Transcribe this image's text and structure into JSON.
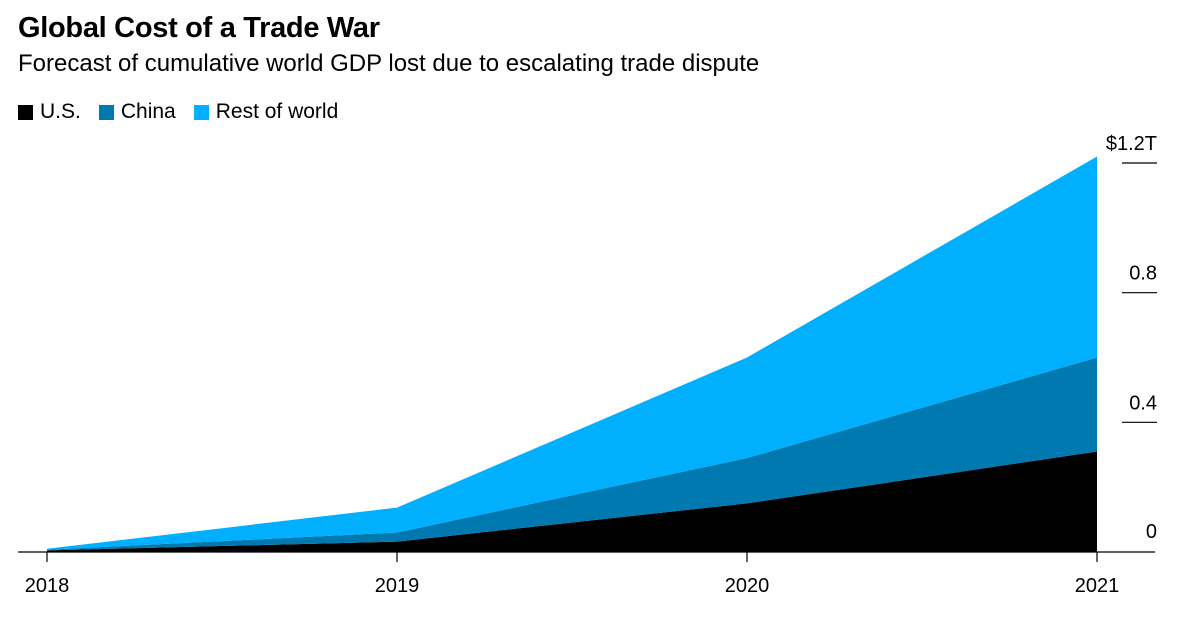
{
  "title": "Global Cost of a Trade War",
  "subtitle": "Forecast of cumulative world GDP lost due to escalating trade dispute",
  "chart_data": {
    "type": "area",
    "stacked": true,
    "x": [
      "2018",
      "2019",
      "2020",
      "2021"
    ],
    "series": [
      {
        "name": "U.S.",
        "color": "#000000",
        "values": [
          0.005,
          0.032,
          0.15,
          0.31
        ]
      },
      {
        "name": "China",
        "color": "#0079b0",
        "values": [
          0.002,
          0.028,
          0.14,
          0.29
        ]
      },
      {
        "name": "Rest of world",
        "color": "#00b0ff",
        "values": [
          0.003,
          0.077,
          0.31,
          0.62
        ]
      }
    ],
    "ylim": [
      0,
      1.2
    ],
    "yticks": [
      {
        "value": 0,
        "label": "0"
      },
      {
        "value": 0.4,
        "label": "0.4"
      },
      {
        "value": 0.8,
        "label": "0.8"
      },
      {
        "value": 1.2,
        "label": "$1.2T"
      }
    ],
    "y_axis_side": "right",
    "legend_position": "top-left",
    "grid": false
  }
}
